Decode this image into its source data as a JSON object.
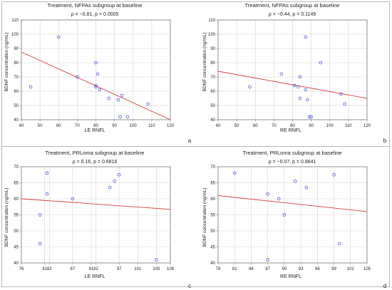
{
  "chart_data": [
    {
      "id": "a",
      "type": "scatter",
      "title": "Treatment, NFPAs subgroup at baseline",
      "subtitle": "ρ = −0.81, p = 0.0005",
      "xlabel": "LE RNFL",
      "ylabel": "BDNF concentration (ng/mL)",
      "panel_label": "a",
      "xlim": [
        40,
        120
      ],
      "ylim": [
        40,
        110
      ],
      "xticks": [
        40,
        50,
        60,
        70,
        80,
        90,
        100,
        110,
        120
      ],
      "yticks": [
        40,
        50,
        60,
        70,
        80,
        90,
        100,
        110
      ],
      "grid": true,
      "points": [
        {
          "x": 45,
          "y": 63
        },
        {
          "x": 60,
          "y": 98
        },
        {
          "x": 70,
          "y": 70
        },
        {
          "x": 80,
          "y": 80
        },
        {
          "x": 80,
          "y": 64
        },
        {
          "x": 80,
          "y": 63
        },
        {
          "x": 81,
          "y": 72
        },
        {
          "x": 82,
          "y": 61
        },
        {
          "x": 87,
          "y": 55
        },
        {
          "x": 92,
          "y": 54
        },
        {
          "x": 93,
          "y": 42
        },
        {
          "x": 94,
          "y": 57
        },
        {
          "x": 97,
          "y": 42
        },
        {
          "x": 108,
          "y": 51
        }
      ],
      "fit_line": {
        "x": [
          40,
          120
        ],
        "y": [
          87.5,
          40
        ]
      }
    },
    {
      "id": "b",
      "type": "scatter",
      "title": "Treatment, NFPAs subgroup at baseline",
      "subtitle": "ρ = −0.44, p = 0.1149",
      "xlabel": "RE RNFL",
      "ylabel": "BDNF concentration (ng/mL)",
      "panel_label": "b",
      "xlim": [
        40,
        120
      ],
      "ylim": [
        40,
        110
      ],
      "xticks": [
        40,
        50,
        60,
        70,
        80,
        90,
        100,
        110,
        120
      ],
      "yticks": [
        40,
        50,
        60,
        70,
        80,
        90,
        100,
        110
      ],
      "grid": true,
      "points": [
        {
          "x": 57,
          "y": 63
        },
        {
          "x": 74,
          "y": 72
        },
        {
          "x": 81,
          "y": 64
        },
        {
          "x": 83,
          "y": 63
        },
        {
          "x": 84,
          "y": 70
        },
        {
          "x": 84,
          "y": 55
        },
        {
          "x": 87,
          "y": 98
        },
        {
          "x": 87,
          "y": 61
        },
        {
          "x": 88,
          "y": 54
        },
        {
          "x": 89,
          "y": 42
        },
        {
          "x": 90,
          "y": 42
        },
        {
          "x": 95,
          "y": 80
        },
        {
          "x": 106,
          "y": 58
        },
        {
          "x": 108,
          "y": 51
        }
      ],
      "fit_line": {
        "x": [
          40,
          120
        ],
        "y": [
          74,
          55
        ]
      }
    },
    {
      "id": "c",
      "type": "scatter",
      "title": "Treatment, PRLoma subgroup at baseline",
      "subtitle": "ρ = 0.16, p = 0.6816",
      "xlabel": "LE RNFL",
      "ylabel": "BDNF concentration (ng/mL)",
      "panel_label": "c",
      "xlim": [
        76,
        108
      ],
      "ylim": [
        40,
        70
      ],
      "xticks": [
        76,
        81,
        82,
        87,
        91,
        92,
        97,
        101,
        105,
        108
      ],
      "xtick_labels": [
        "76",
        "81",
        "82",
        "87",
        "91",
        "92",
        "97",
        "101",
        "105",
        "108"
      ],
      "yticks": [
        40,
        45,
        50,
        55,
        60,
        65,
        70
      ],
      "grid": true,
      "points": [
        {
          "x": 80,
          "y": 55
        },
        {
          "x": 80,
          "y": 46
        },
        {
          "x": 81.5,
          "y": 61.5
        },
        {
          "x": 81.5,
          "y": 68
        },
        {
          "x": 87,
          "y": 60
        },
        {
          "x": 95,
          "y": 63.5
        },
        {
          "x": 96,
          "y": 65.5
        },
        {
          "x": 97,
          "y": 67.5
        },
        {
          "x": 105,
          "y": 41
        }
      ],
      "fit_line": {
        "x": [
          76,
          108
        ],
        "y": [
          60,
          56.7
        ]
      }
    },
    {
      "id": "d",
      "type": "scatter",
      "title": "Treatment, PRLoma subgroup at baseline",
      "subtitle": "ρ = −0.07, p = 0.8641",
      "xlabel": "RE RNFL",
      "ylabel": "BDNF concentration (ng/mL)",
      "panel_label": "d",
      "xlim": [
        78,
        105
      ],
      "ylim": [
        40,
        70
      ],
      "xticks": [
        78,
        81,
        84,
        87,
        90,
        93,
        96,
        99,
        102,
        105
      ],
      "yticks": [
        40,
        45,
        50,
        55,
        60,
        65,
        70
      ],
      "grid": true,
      "points": [
        {
          "x": 81,
          "y": 68
        },
        {
          "x": 87,
          "y": 61.5
        },
        {
          "x": 87,
          "y": 41
        },
        {
          "x": 89,
          "y": 60
        },
        {
          "x": 90,
          "y": 55
        },
        {
          "x": 92,
          "y": 65.5
        },
        {
          "x": 94,
          "y": 63.5
        },
        {
          "x": 99,
          "y": 67.5
        },
        {
          "x": 100,
          "y": 46
        }
      ],
      "fit_line": {
        "x": [
          78,
          105
        ],
        "y": [
          61,
          56
        ]
      }
    }
  ],
  "colors": {
    "points": "#3a4fd0",
    "fit_line": "#d93a3a",
    "grid": "#d6d6d6",
    "axis": "#7a7a7a"
  }
}
